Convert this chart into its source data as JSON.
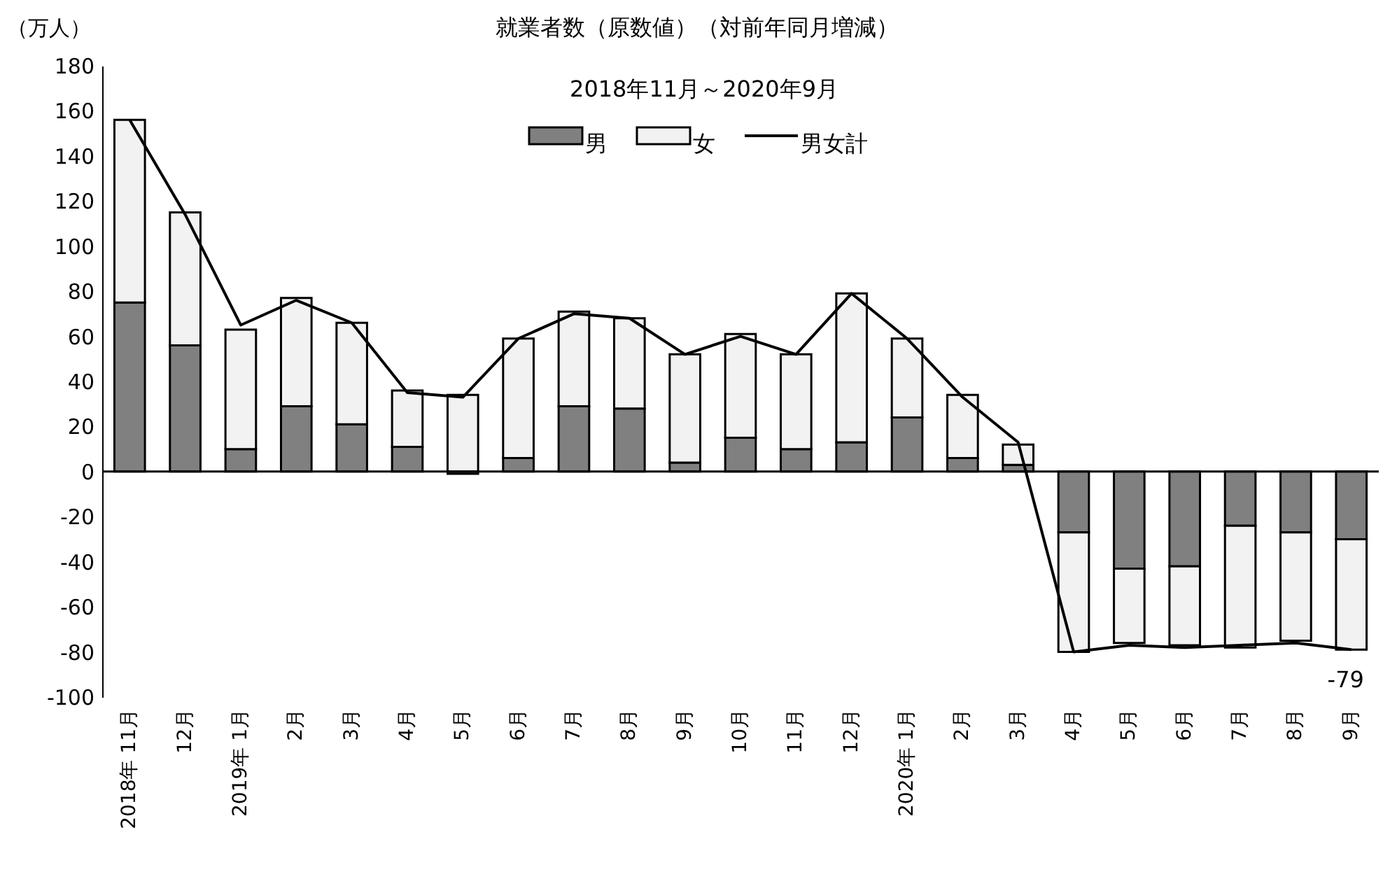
{
  "chart_data": {
    "type": "bar",
    "stacked": true,
    "title": "就業者数（原数値）（対前年同月増減）",
    "subtitle": "2018年11月～2020年9月",
    "ylabel": "（万人）",
    "categories": [
      "2018年 11月",
      "12月",
      "2019年 1月",
      "2月",
      "3月",
      "4月",
      "5月",
      "6月",
      "7月",
      "8月",
      "9月",
      "10月",
      "11月",
      "12月",
      "2020年 1月",
      "2月",
      "3月",
      "4月",
      "5月",
      "6月",
      "7月",
      "8月",
      "9月"
    ],
    "series": [
      {
        "name": "男",
        "color": "#808080",
        "values": [
          75,
          56,
          10,
          29,
          21,
          11,
          -1,
          6,
          29,
          28,
          4,
          15,
          10,
          13,
          24,
          6,
          3,
          -27,
          -43,
          -42,
          -24,
          -27,
          -30
        ]
      },
      {
        "name": "女",
        "color": "#f2f2f2",
        "values": [
          81,
          59,
          53,
          48,
          45,
          25,
          34,
          53,
          42,
          40,
          48,
          46,
          42,
          66,
          35,
          28,
          9,
          -53,
          -33,
          -35,
          -54,
          -48,
          -49
        ]
      },
      {
        "name": "男女計",
        "type": "line",
        "color": "#000000",
        "values": [
          156,
          114,
          65,
          76,
          66,
          35,
          33,
          59,
          70,
          68,
          52,
          60,
          52,
          79,
          59,
          33,
          13,
          -80,
          -77,
          -78,
          -77,
          -76,
          -79
        ],
        "value_labels": [
          null,
          null,
          null,
          null,
          null,
          null,
          null,
          null,
          null,
          null,
          null,
          null,
          null,
          null,
          null,
          null,
          null,
          null,
          null,
          null,
          null,
          null,
          "-79"
        ]
      }
    ],
    "ylim": [
      -100,
      180
    ],
    "yticks": [
      -100,
      -80,
      -60,
      -40,
      -20,
      0,
      20,
      40,
      60,
      80,
      100,
      120,
      140,
      160,
      180
    ],
    "ref_lines": [
      {
        "axis": "y",
        "value": 0,
        "color": "#000000"
      }
    ],
    "grid": false,
    "legend": "top"
  }
}
